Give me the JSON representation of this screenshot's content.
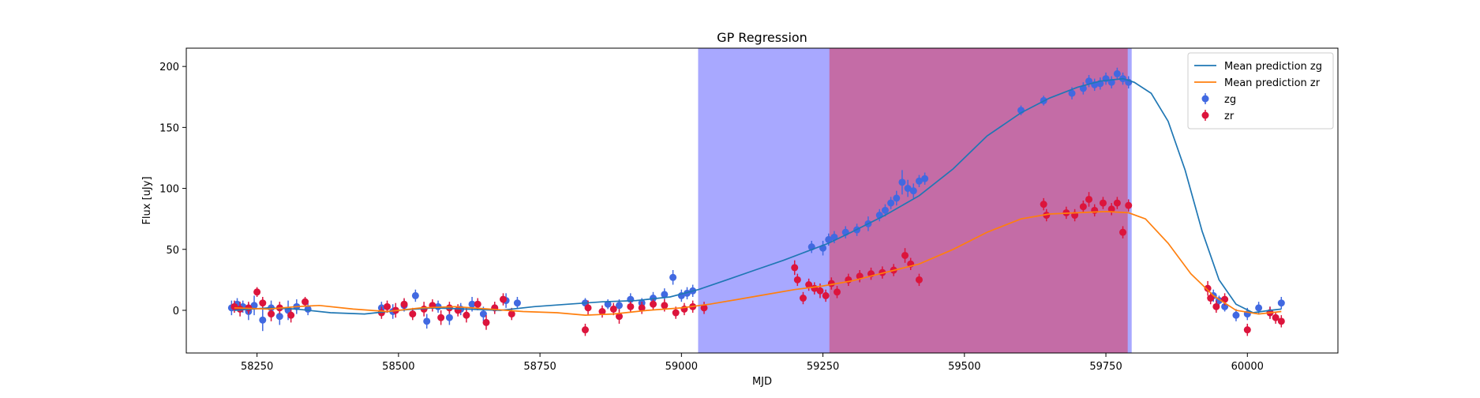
{
  "chart_data": {
    "type": "scatter",
    "title": "GP Regression",
    "xlabel": "MJD",
    "ylabel": "Flux [uJy]",
    "xlim": [
      58125,
      60160
    ],
    "ylim": [
      -35,
      215
    ],
    "xticks": [
      58250,
      58500,
      58750,
      59000,
      59250,
      59500,
      59750,
      60000
    ],
    "yticks": [
      0,
      50,
      100,
      150,
      200
    ],
    "grid": false,
    "legend": "top-right",
    "bands": [
      {
        "x0": 59030,
        "x1": 59795,
        "color": "#a8a8ff"
      },
      {
        "x0": 59262,
        "x1": 59788,
        "color": "#c46ca6"
      }
    ],
    "series": [
      {
        "name": "Mean prediction zg",
        "kind": "line",
        "color": "#1f77b4",
        "x": [
          58210,
          58270,
          58320,
          58380,
          58440,
          58500,
          58560,
          58620,
          58680,
          58740,
          58800,
          58860,
          58920,
          58980,
          59030,
          59080,
          59130,
          59180,
          59220,
          59260,
          59300,
          59360,
          59420,
          59480,
          59540,
          59600,
          59650,
          59700,
          59740,
          59780,
          59800,
          59830,
          59860,
          59890,
          59920,
          59950,
          59980,
          60010,
          60040,
          60060
        ],
        "y": [
          0,
          2,
          1,
          -2,
          -3,
          0,
          2,
          1,
          0,
          3,
          5,
          7,
          8,
          11,
          17,
          25,
          33,
          41,
          48,
          55,
          64,
          78,
          94,
          116,
          143,
          162,
          174,
          183,
          188,
          190,
          187,
          178,
          155,
          115,
          65,
          25,
          5,
          -2,
          0,
          1
        ]
      },
      {
        "name": "Mean prediction zr",
        "kind": "line",
        "color": "#ff7f0e",
        "x": [
          58210,
          58270,
          58320,
          58360,
          58420,
          58480,
          58540,
          58600,
          58660,
          58720,
          58780,
          58830,
          58880,
          58940,
          59000,
          59050,
          59100,
          59150,
          59200,
          59250,
          59300,
          59360,
          59420,
          59480,
          59540,
          59600,
          59650,
          59700,
          59750,
          59790,
          59820,
          59860,
          59900,
          59940,
          59980,
          60020,
          60060
        ],
        "y": [
          2,
          1,
          3,
          4,
          1,
          -1,
          2,
          3,
          1,
          -1,
          -2,
          -4,
          -3,
          0,
          2,
          5,
          9,
          13,
          17,
          20,
          24,
          31,
          38,
          50,
          64,
          75,
          79,
          80,
          81,
          80,
          75,
          55,
          30,
          12,
          0,
          -3,
          -1
        ]
      },
      {
        "name": "zg",
        "kind": "errorbar",
        "color": "#4169e1",
        "x": [
          58205,
          58215,
          58225,
          58235,
          58245,
          58260,
          58275,
          58290,
          58305,
          58320,
          58340,
          58470,
          58490,
          58510,
          58530,
          58550,
          58570,
          58590,
          58610,
          58630,
          58650,
          58670,
          58690,
          58710,
          58830,
          58870,
          58890,
          58910,
          58930,
          58950,
          58970,
          58985,
          59000,
          59010,
          59020,
          59230,
          59250,
          59260,
          59270,
          59290,
          59310,
          59330,
          59350,
          59360,
          59370,
          59380,
          59390,
          59400,
          59410,
          59420,
          59430,
          59600,
          59640,
          59690,
          59710,
          59720,
          59730,
          59740,
          59750,
          59760,
          59770,
          59780,
          59790,
          59940,
          59950,
          59960,
          59980,
          60000,
          60020,
          60040,
          60060
        ],
        "y": [
          2,
          5,
          3,
          -1,
          4,
          -8,
          2,
          -5,
          0,
          3,
          1,
          2,
          -1,
          4,
          12,
          -9,
          3,
          -6,
          1,
          5,
          -3,
          2,
          8,
          6,
          6,
          5,
          4,
          9,
          6,
          10,
          13,
          27,
          12,
          14,
          16,
          52,
          51,
          58,
          60,
          64,
          66,
          71,
          78,
          82,
          88,
          92,
          105,
          100,
          98,
          106,
          108,
          164,
          172,
          178,
          182,
          188,
          185,
          186,
          190,
          187,
          194,
          190,
          187,
          12,
          8,
          3,
          -4,
          -3,
          2,
          -2,
          6
        ],
        "yerr": [
          6,
          5,
          5,
          7,
          8,
          9,
          6,
          7,
          8,
          6,
          5,
          5,
          6,
          5,
          5,
          6,
          5,
          6,
          5,
          6,
          6,
          5,
          6,
          5,
          4,
          4,
          5,
          5,
          4,
          5,
          5,
          6,
          5,
          5,
          5,
          5,
          6,
          5,
          5,
          5,
          5,
          6,
          5,
          5,
          5,
          6,
          10,
          7,
          6,
          5,
          5,
          4,
          4,
          5,
          5,
          5,
          5,
          5,
          5,
          5,
          5,
          5,
          5,
          5,
          4,
          4,
          5,
          5,
          5,
          5,
          5
        ]
      },
      {
        "name": "zr",
        "kind": "errorbar",
        "color": "#dc143c",
        "x": [
          58210,
          58220,
          58235,
          58250,
          58260,
          58275,
          58290,
          58310,
          58335,
          58470,
          58480,
          58495,
          58510,
          58525,
          58545,
          58560,
          58575,
          58590,
          58605,
          58620,
          58640,
          58655,
          58670,
          58685,
          58700,
          58830,
          58835,
          58860,
          58880,
          58890,
          58910,
          58930,
          58950,
          58970,
          58990,
          59005,
          59020,
          59040,
          59200,
          59205,
          59215,
          59225,
          59235,
          59245,
          59255,
          59265,
          59275,
          59295,
          59315,
          59335,
          59355,
          59375,
          59395,
          59405,
          59420,
          59640,
          59645,
          59680,
          59695,
          59710,
          59720,
          59730,
          59745,
          59760,
          59770,
          59780,
          59790,
          59930,
          59935,
          59945,
          59960,
          60000,
          60040,
          60050,
          60060
        ],
        "y": [
          3,
          1,
          2,
          15,
          6,
          -3,
          2,
          -4,
          7,
          -2,
          3,
          0,
          5,
          -3,
          1,
          4,
          -6,
          2,
          0,
          -4,
          5,
          -10,
          2,
          9,
          -3,
          -16,
          2,
          -1,
          1,
          -5,
          3,
          2,
          5,
          4,
          -2,
          1,
          3,
          2,
          35,
          25,
          10,
          21,
          18,
          16,
          12,
          22,
          15,
          25,
          28,
          30,
          31,
          33,
          45,
          38,
          25,
          87,
          78,
          80,
          78,
          85,
          91,
          82,
          88,
          83,
          88,
          64,
          86,
          18,
          10,
          3,
          9,
          -16,
          -2,
          -6,
          -9
        ],
        "yerr": [
          5,
          6,
          5,
          4,
          5,
          6,
          5,
          6,
          4,
          5,
          5,
          6,
          5,
          5,
          6,
          5,
          6,
          5,
          5,
          6,
          5,
          6,
          5,
          5,
          5,
          5,
          6,
          5,
          5,
          6,
          5,
          5,
          5,
          5,
          5,
          5,
          5,
          5,
          6,
          5,
          5,
          5,
          5,
          6,
          5,
          5,
          5,
          5,
          5,
          5,
          5,
          5,
          6,
          5,
          5,
          5,
          5,
          5,
          5,
          5,
          6,
          5,
          5,
          5,
          5,
          5,
          5,
          6,
          5,
          5,
          5,
          5,
          5,
          5,
          5
        ]
      }
    ]
  }
}
